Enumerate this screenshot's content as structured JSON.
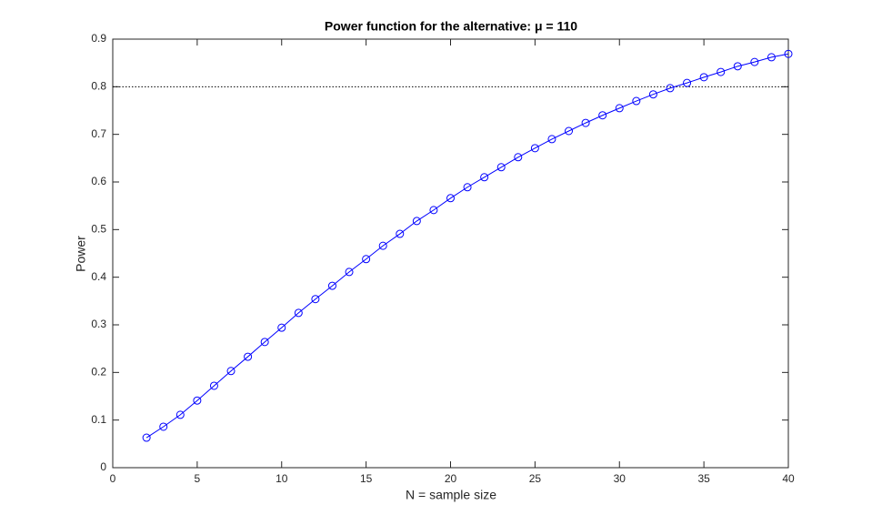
{
  "chart_data": {
    "type": "line",
    "title": "Power function for the alternative: μ = 110",
    "xlabel": "N = sample size",
    "ylabel": "Power",
    "x": [
      2,
      3,
      4,
      5,
      6,
      7,
      8,
      9,
      10,
      11,
      12,
      13,
      14,
      15,
      16,
      17,
      18,
      19,
      20,
      21,
      22,
      23,
      24,
      25,
      26,
      27,
      28,
      29,
      30,
      31,
      32,
      33,
      34,
      35,
      36,
      37,
      38,
      39,
      40
    ],
    "values": [
      0.063,
      0.086,
      0.111,
      0.141,
      0.172,
      0.203,
      0.233,
      0.264,
      0.294,
      0.325,
      0.354,
      0.382,
      0.411,
      0.438,
      0.466,
      0.491,
      0.518,
      0.541,
      0.566,
      0.589,
      0.61,
      0.631,
      0.652,
      0.671,
      0.69,
      0.707,
      0.724,
      0.74,
      0.755,
      0.77,
      0.784,
      0.797,
      0.808,
      0.82,
      0.831,
      0.843,
      0.852,
      0.862,
      0.869
    ],
    "color": "#0000ff",
    "marker": "circle",
    "reference_line": 0.8,
    "xlim": [
      0,
      40
    ],
    "xticks": [
      0,
      5,
      10,
      15,
      20,
      25,
      30,
      35,
      40
    ],
    "ylim": [
      0,
      0.9
    ],
    "yticks": [
      0,
      0.1,
      0.2,
      0.3,
      0.4,
      0.5,
      0.6,
      0.7,
      0.8,
      0.9
    ],
    "grid": false
  }
}
